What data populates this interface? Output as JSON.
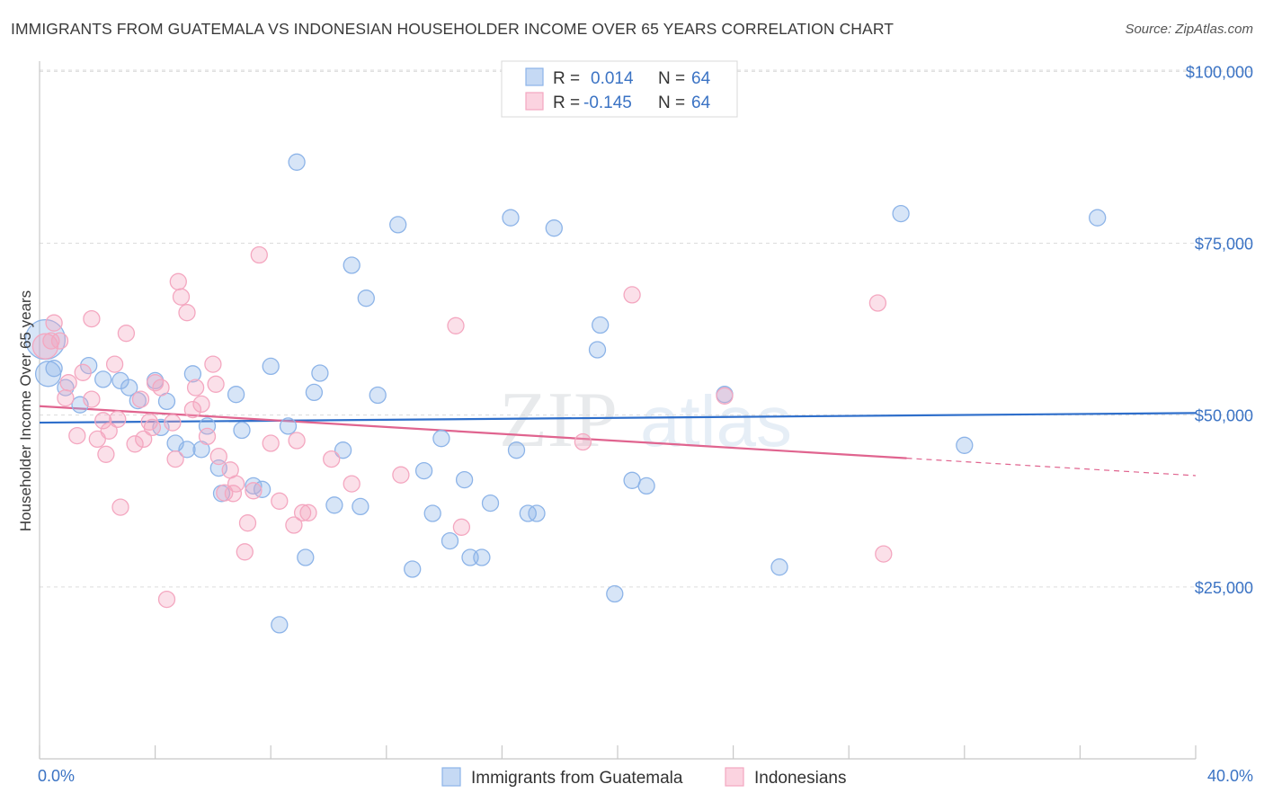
{
  "title": "IMMIGRANTS FROM GUATEMALA VS INDONESIAN HOUSEHOLDER INCOME OVER 65 YEARS CORRELATION CHART",
  "source": "Source: ZipAtlas.com",
  "watermark": {
    "zip": "ZIP",
    "atlas": "atlas"
  },
  "legend": {
    "rows": [
      {
        "r_label": "R =",
        "r_value": "0.014",
        "n_label": "N =",
        "n_value": "64"
      },
      {
        "r_label": "R =",
        "r_value": "-0.145",
        "n_label": "N =",
        "n_value": "64"
      }
    ]
  },
  "chart_data": {
    "type": "scatter",
    "xlabel": "",
    "ylabel": "Householder Income Over 65 years",
    "xlim": [
      0,
      40
    ],
    "ylim": [
      0,
      105000
    ],
    "x_tick_labels": [
      "0.0%",
      "40.0%"
    ],
    "y_ticks": [
      25000,
      50000,
      75000,
      100000
    ],
    "y_tick_labels": [
      "$25,000",
      "$50,000",
      "$75,000",
      "$100,000"
    ],
    "grid": true,
    "legend_position": "top-center",
    "series": [
      {
        "name": "Immigrants from Guatemala",
        "color": "#8db4e8",
        "line_color": "#2f6fcb",
        "trend": {
          "x": [
            0,
            40
          ],
          "y": [
            48900,
            50300
          ],
          "dashed_from": null
        },
        "points": [
          [
            0.2,
            61000,
            22
          ],
          [
            0.3,
            56000,
            14
          ],
          [
            0.5,
            56800,
            9
          ],
          [
            0.9,
            54000,
            9
          ],
          [
            1.7,
            57200,
            9
          ],
          [
            1.4,
            51500,
            9
          ],
          [
            2.2,
            55200,
            9
          ],
          [
            2.8,
            55000,
            9
          ],
          [
            3.1,
            54000,
            9
          ],
          [
            3.4,
            52100,
            9
          ],
          [
            4.0,
            55000,
            9
          ],
          [
            4.2,
            48200,
            9
          ],
          [
            4.4,
            52000,
            9
          ],
          [
            4.7,
            45900,
            9
          ],
          [
            5.1,
            45000,
            9
          ],
          [
            5.3,
            56000,
            9
          ],
          [
            5.6,
            45000,
            9
          ],
          [
            5.8,
            48400,
            9
          ],
          [
            6.2,
            42300,
            9
          ],
          [
            6.3,
            38600,
            9
          ],
          [
            6.8,
            53000,
            9
          ],
          [
            7.0,
            47800,
            9
          ],
          [
            7.4,
            39700,
            9
          ],
          [
            7.7,
            39200,
            9
          ],
          [
            8.0,
            57100,
            9
          ],
          [
            8.3,
            19500,
            9
          ],
          [
            8.6,
            48400,
            9
          ],
          [
            8.9,
            86800,
            9
          ],
          [
            9.2,
            29300,
            9
          ],
          [
            9.5,
            53300,
            9
          ],
          [
            9.7,
            56100,
            9
          ],
          [
            10.2,
            36900,
            9
          ],
          [
            10.5,
            44900,
            9
          ],
          [
            10.8,
            71800,
            9
          ],
          [
            11.1,
            36700,
            9
          ],
          [
            11.3,
            67000,
            9
          ],
          [
            11.7,
            52900,
            9
          ],
          [
            12.4,
            77700,
            9
          ],
          [
            12.9,
            27600,
            9
          ],
          [
            13.3,
            41900,
            9
          ],
          [
            13.6,
            35700,
            9
          ],
          [
            13.9,
            46600,
            9
          ],
          [
            14.2,
            31700,
            9
          ],
          [
            14.7,
            40600,
            9
          ],
          [
            14.9,
            29300,
            9
          ],
          [
            15.3,
            29300,
            9
          ],
          [
            15.6,
            37200,
            9
          ],
          [
            16.3,
            78700,
            9
          ],
          [
            16.5,
            44900,
            9
          ],
          [
            16.9,
            35700,
            9
          ],
          [
            17.2,
            35700,
            9
          ],
          [
            17.8,
            77200,
            9
          ],
          [
            19.3,
            59500,
            9
          ],
          [
            19.4,
            63100,
            9
          ],
          [
            19.9,
            24000,
            9
          ],
          [
            20.5,
            40500,
            9
          ],
          [
            21.0,
            39700,
            9
          ],
          [
            23.7,
            53000,
            9
          ],
          [
            25.6,
            27900,
            9
          ],
          [
            29.8,
            79300,
            9
          ],
          [
            32.0,
            45600,
            9
          ],
          [
            36.6,
            78700,
            9
          ]
        ]
      },
      {
        "name": "Indonesians",
        "color": "#f4a7c0",
        "line_color": "#e0648f",
        "trend": {
          "x": [
            0,
            40
          ],
          "y": [
            51300,
            41200
          ],
          "dashed_from": 30.0
        },
        "points": [
          [
            0.2,
            60000,
            14
          ],
          [
            0.4,
            60800,
            9
          ],
          [
            0.5,
            63400,
            9
          ],
          [
            0.7,
            60800,
            9
          ],
          [
            0.9,
            52500,
            9
          ],
          [
            1.0,
            54700,
            9
          ],
          [
            1.3,
            47000,
            9
          ],
          [
            1.5,
            56200,
            9
          ],
          [
            1.8,
            52300,
            9
          ],
          [
            1.8,
            64000,
            9
          ],
          [
            2.0,
            46500,
            9
          ],
          [
            2.2,
            49200,
            9
          ],
          [
            2.3,
            44300,
            9
          ],
          [
            2.4,
            47700,
            9
          ],
          [
            2.6,
            57400,
            9
          ],
          [
            2.7,
            49400,
            9
          ],
          [
            2.8,
            36600,
            9
          ],
          [
            3.0,
            61900,
            9
          ],
          [
            3.3,
            45800,
            9
          ],
          [
            3.5,
            52300,
            9
          ],
          [
            3.6,
            46500,
            9
          ],
          [
            3.8,
            49000,
            9
          ],
          [
            3.9,
            48200,
            9
          ],
          [
            4.0,
            54700,
            9
          ],
          [
            4.2,
            54000,
            9
          ],
          [
            4.4,
            23200,
            9
          ],
          [
            4.6,
            48900,
            9
          ],
          [
            4.7,
            43600,
            9
          ],
          [
            4.8,
            69400,
            9
          ],
          [
            4.9,
            67200,
            9
          ],
          [
            5.1,
            64900,
            9
          ],
          [
            5.3,
            50800,
            9
          ],
          [
            5.4,
            54000,
            9
          ],
          [
            5.6,
            51600,
            9
          ],
          [
            5.8,
            46900,
            9
          ],
          [
            6.0,
            57400,
            9
          ],
          [
            6.1,
            54500,
            9
          ],
          [
            6.2,
            44000,
            9
          ],
          [
            6.4,
            38700,
            9
          ],
          [
            6.6,
            42000,
            9
          ],
          [
            6.7,
            38600,
            9
          ],
          [
            6.8,
            40000,
            9
          ],
          [
            7.1,
            30100,
            9
          ],
          [
            7.2,
            34300,
            9
          ],
          [
            7.4,
            39000,
            9
          ],
          [
            7.6,
            73300,
            9
          ],
          [
            8.0,
            45900,
            9
          ],
          [
            8.3,
            37500,
            9
          ],
          [
            8.8,
            34000,
            9
          ],
          [
            8.9,
            46300,
            9
          ],
          [
            9.1,
            35800,
            9
          ],
          [
            9.3,
            35800,
            9
          ],
          [
            10.1,
            43600,
            9
          ],
          [
            10.8,
            40000,
            9
          ],
          [
            12.5,
            41300,
            9
          ],
          [
            14.4,
            63000,
            9
          ],
          [
            14.6,
            33700,
            9
          ],
          [
            18.8,
            46100,
            9
          ],
          [
            20.5,
            67500,
            9
          ],
          [
            23.7,
            52800,
            9
          ],
          [
            29.0,
            66300,
            9
          ],
          [
            29.2,
            29800,
            9
          ]
        ]
      }
    ]
  }
}
